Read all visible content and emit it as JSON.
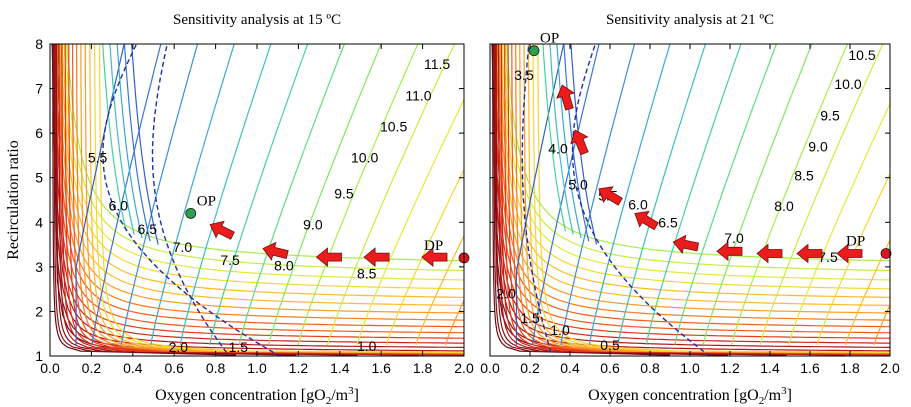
{
  "chart_data": [
    {
      "type": "contour",
      "title": "Sensitivity analysis at 15 ºC",
      "xlabel": "Oxygen concentration [gO2/m3]",
      "ylabel": "Recirculation ratio",
      "xlim": [
        0,
        2.0
      ],
      "ylim": [
        1,
        8
      ],
      "xticks": [
        "0.0",
        "0.2",
        "0.4",
        "0.6",
        "0.8",
        "1.0",
        "1.2",
        "1.4",
        "1.6",
        "1.8",
        "2.0"
      ],
      "yticks": [
        "1",
        "2",
        "3",
        "4",
        "5",
        "6",
        "7",
        "8"
      ],
      "contour_labels": [
        {
          "text": "11.5",
          "x": 1.87,
          "y": 7.55
        },
        {
          "text": "11.0",
          "x": 1.78,
          "y": 6.85
        },
        {
          "text": "10.5",
          "x": 1.66,
          "y": 6.15
        },
        {
          "text": "10.0",
          "x": 1.52,
          "y": 5.45
        },
        {
          "text": "9.5",
          "x": 1.42,
          "y": 4.65
        },
        {
          "text": "9.0",
          "x": 1.27,
          "y": 3.95
        },
        {
          "text": "8.5",
          "x": 1.53,
          "y": 2.85
        },
        {
          "text": "8.0",
          "x": 1.13,
          "y": 3.03
        },
        {
          "text": "7.5",
          "x": 0.87,
          "y": 3.15
        },
        {
          "text": "7.0",
          "x": 0.64,
          "y": 3.45
        },
        {
          "text": "6.5",
          "x": 0.47,
          "y": 3.85
        },
        {
          "text": "6.0",
          "x": 0.33,
          "y": 4.38
        },
        {
          "text": "5.5",
          "x": 0.23,
          "y": 5.45
        },
        {
          "text": "2.0",
          "x": 0.62,
          "y": 1.2
        },
        {
          "text": "1.5",
          "x": 0.91,
          "y": 1.2
        },
        {
          "text": "1.0",
          "x": 1.53,
          "y": 1.22
        }
      ],
      "points": [
        {
          "label": "OP",
          "x": 0.68,
          "y": 4.2,
          "color": "#2e9e4f"
        },
        {
          "label": "DP",
          "x": 2.0,
          "y": 3.2,
          "color": "#e0141e"
        }
      ],
      "arrows": [
        {
          "x": 1.86,
          "y": 3.22,
          "dx": -1,
          "dy": 0
        },
        {
          "x": 1.58,
          "y": 3.22,
          "dx": -1,
          "dy": 0
        },
        {
          "x": 1.35,
          "y": 3.22,
          "dx": -1,
          "dy": 0
        },
        {
          "x": 1.09,
          "y": 3.34,
          "dx": -1,
          "dy": 0.25
        },
        {
          "x": 0.83,
          "y": 3.82,
          "dx": -1,
          "dy": 0.5
        }
      ],
      "dashed_curves": 2,
      "grid": false
    },
    {
      "type": "contour",
      "title": "Sensitivity analysis at 21 ºC",
      "xlabel": "Oxygen concentration [gO2/m3]",
      "ylabel": "",
      "xlim": [
        0,
        2.0
      ],
      "ylim": [
        1,
        8
      ],
      "xticks": [
        "0.0",
        "0.2",
        "0.4",
        "0.6",
        "0.8",
        "1.0",
        "1.2",
        "1.4",
        "1.6",
        "1.8",
        "2.0"
      ],
      "yticks": [],
      "contour_labels": [
        {
          "text": "10.5",
          "x": 1.86,
          "y": 7.75
        },
        {
          "text": "10.0",
          "x": 1.79,
          "y": 7.1
        },
        {
          "text": "9.5",
          "x": 1.7,
          "y": 6.4
        },
        {
          "text": "9.0",
          "x": 1.64,
          "y": 5.7
        },
        {
          "text": "8.5",
          "x": 1.57,
          "y": 5.05
        },
        {
          "text": "8.0",
          "x": 1.47,
          "y": 4.37
        },
        {
          "text": "7.5",
          "x": 1.69,
          "y": 3.22
        },
        {
          "text": "7.0",
          "x": 1.22,
          "y": 3.65
        },
        {
          "text": "6.5",
          "x": 0.89,
          "y": 4.0
        },
        {
          "text": "6.0",
          "x": 0.74,
          "y": 4.4
        },
        {
          "text": "5.5",
          "x": 0.59,
          "y": 4.6
        },
        {
          "text": "5.0",
          "x": 0.44,
          "y": 4.85
        },
        {
          "text": "4.0",
          "x": 0.34,
          "y": 5.65
        },
        {
          "text": "3.5",
          "x": 0.17,
          "y": 7.3
        },
        {
          "text": "2.0",
          "x": 0.08,
          "y": 2.4
        },
        {
          "text": "1.5",
          "x": 0.2,
          "y": 1.85
        },
        {
          "text": "1.0",
          "x": 0.35,
          "y": 1.58
        },
        {
          "text": "0.5",
          "x": 0.6,
          "y": 1.25
        }
      ],
      "points": [
        {
          "label": "OP",
          "x": 0.22,
          "y": 7.85,
          "color": "#2e9e4f"
        },
        {
          "label": "DP",
          "x": 1.98,
          "y": 3.3,
          "color": "#e0141e"
        }
      ],
      "arrows": [
        {
          "x": 1.8,
          "y": 3.3,
          "dx": -1,
          "dy": 0
        },
        {
          "x": 1.6,
          "y": 3.3,
          "dx": -1,
          "dy": 0
        },
        {
          "x": 1.4,
          "y": 3.3,
          "dx": -1,
          "dy": 0
        },
        {
          "x": 1.2,
          "y": 3.35,
          "dx": -1,
          "dy": 0
        },
        {
          "x": 0.98,
          "y": 3.5,
          "dx": -1,
          "dy": 0.2
        },
        {
          "x": 0.78,
          "y": 4.05,
          "dx": -1,
          "dy": 0.6
        },
        {
          "x": 0.6,
          "y": 4.6,
          "dx": -1,
          "dy": 0.6
        },
        {
          "x": 0.45,
          "y": 5.8,
          "dx": -0.4,
          "dy": 1
        },
        {
          "x": 0.38,
          "y": 6.8,
          "dx": -0.3,
          "dy": 1
        }
      ],
      "dashed_curves": 2,
      "grid": false
    }
  ]
}
